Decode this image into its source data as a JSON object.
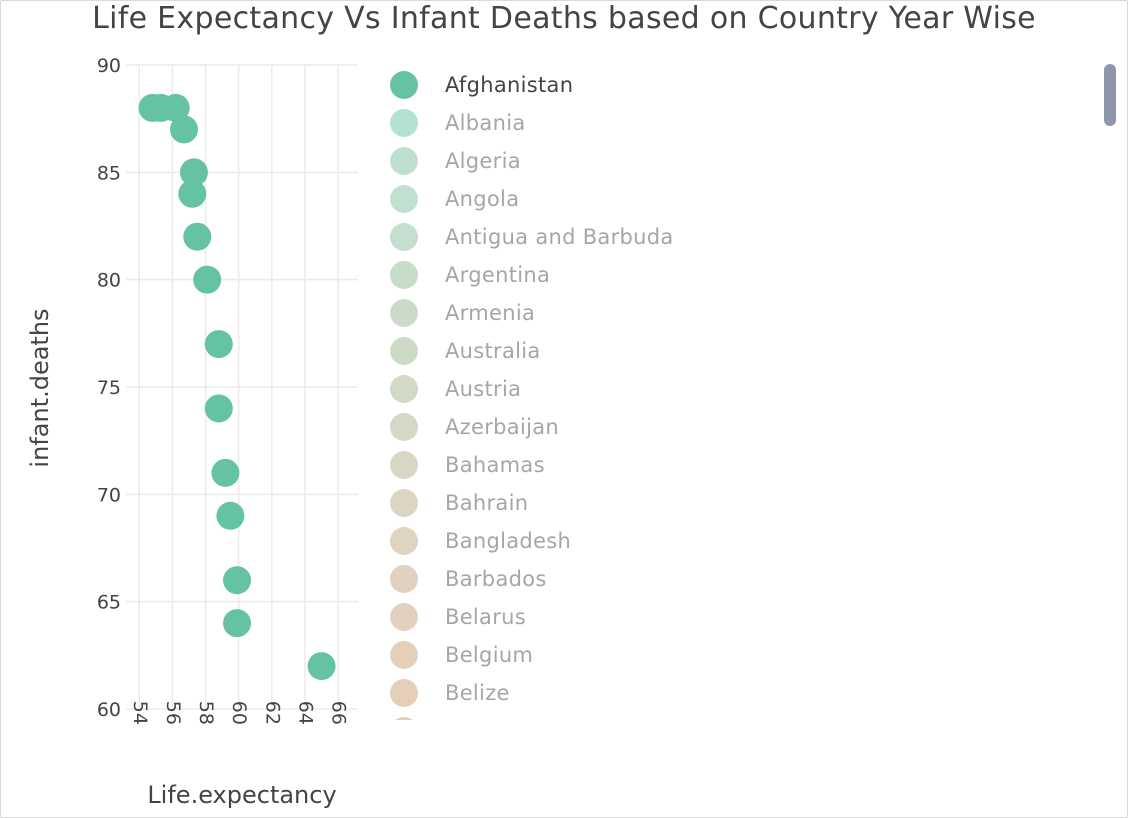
{
  "title": "Life Expectancy Vs Infant Deaths based on Country Year Wise",
  "chart_data": {
    "type": "scatter",
    "title": "Life Expectancy Vs Infant Deaths based on Country Year Wise",
    "xlabel": "Life.expectancy",
    "ylabel": "infant.deaths",
    "xlim": [
      53.2,
      67.2
    ],
    "ylim": [
      60,
      90
    ],
    "xticks": [
      54,
      56,
      58,
      60,
      62,
      64,
      66
    ],
    "yticks": [
      60,
      65,
      70,
      75,
      80,
      85,
      90
    ],
    "grid": true,
    "legend_position": "right",
    "series": [
      {
        "name": "Afghanistan",
        "color": "#66c2a5",
        "x": [
          54.8,
          55.3,
          56.2,
          56.7,
          57.3,
          57.2,
          57.5,
          58.1,
          58.8,
          58.8,
          59.2,
          59.5,
          59.9,
          59.9,
          65.0
        ],
        "y": [
          88,
          88,
          88,
          87,
          85,
          84,
          82,
          80,
          77,
          74,
          71,
          69,
          66,
          64,
          62
        ]
      }
    ]
  },
  "legend": {
    "items": [
      {
        "label": "Afghanistan",
        "color": "#66c2a5",
        "active": true
      },
      {
        "label": "Albania",
        "color": "#b3e2d3",
        "active": false
      },
      {
        "label": "Algeria",
        "color": "#bde0cf",
        "active": false
      },
      {
        "label": "Angola",
        "color": "#c1e0d0",
        "active": false
      },
      {
        "label": "Antigua and Barbuda",
        "color": "#c4dfcf",
        "active": false
      },
      {
        "label": "Argentina",
        "color": "#c7ddca",
        "active": false
      },
      {
        "label": "Armenia",
        "color": "#cadcc8",
        "active": false
      },
      {
        "label": "Australia",
        "color": "#cddbc6",
        "active": false
      },
      {
        "label": "Austria",
        "color": "#d2dac5",
        "active": false
      },
      {
        "label": "Azerbaijan",
        "color": "#d5d8c5",
        "active": false
      },
      {
        "label": "Bahamas",
        "color": "#d9d6c3",
        "active": false
      },
      {
        "label": "Bahrain",
        "color": "#dcd5c1",
        "active": false
      },
      {
        "label": "Bangladesh",
        "color": "#ded4bf",
        "active": false
      },
      {
        "label": "Barbados",
        "color": "#e0d2be",
        "active": false
      },
      {
        "label": "Belarus",
        "color": "#e2d1bc",
        "active": false
      },
      {
        "label": "Belgium",
        "color": "#e4d0ba",
        "active": false
      },
      {
        "label": "Belize",
        "color": "#e6cfb8",
        "active": false
      },
      {
        "label": "",
        "color": "#e8cdb6",
        "active": false
      }
    ]
  }
}
